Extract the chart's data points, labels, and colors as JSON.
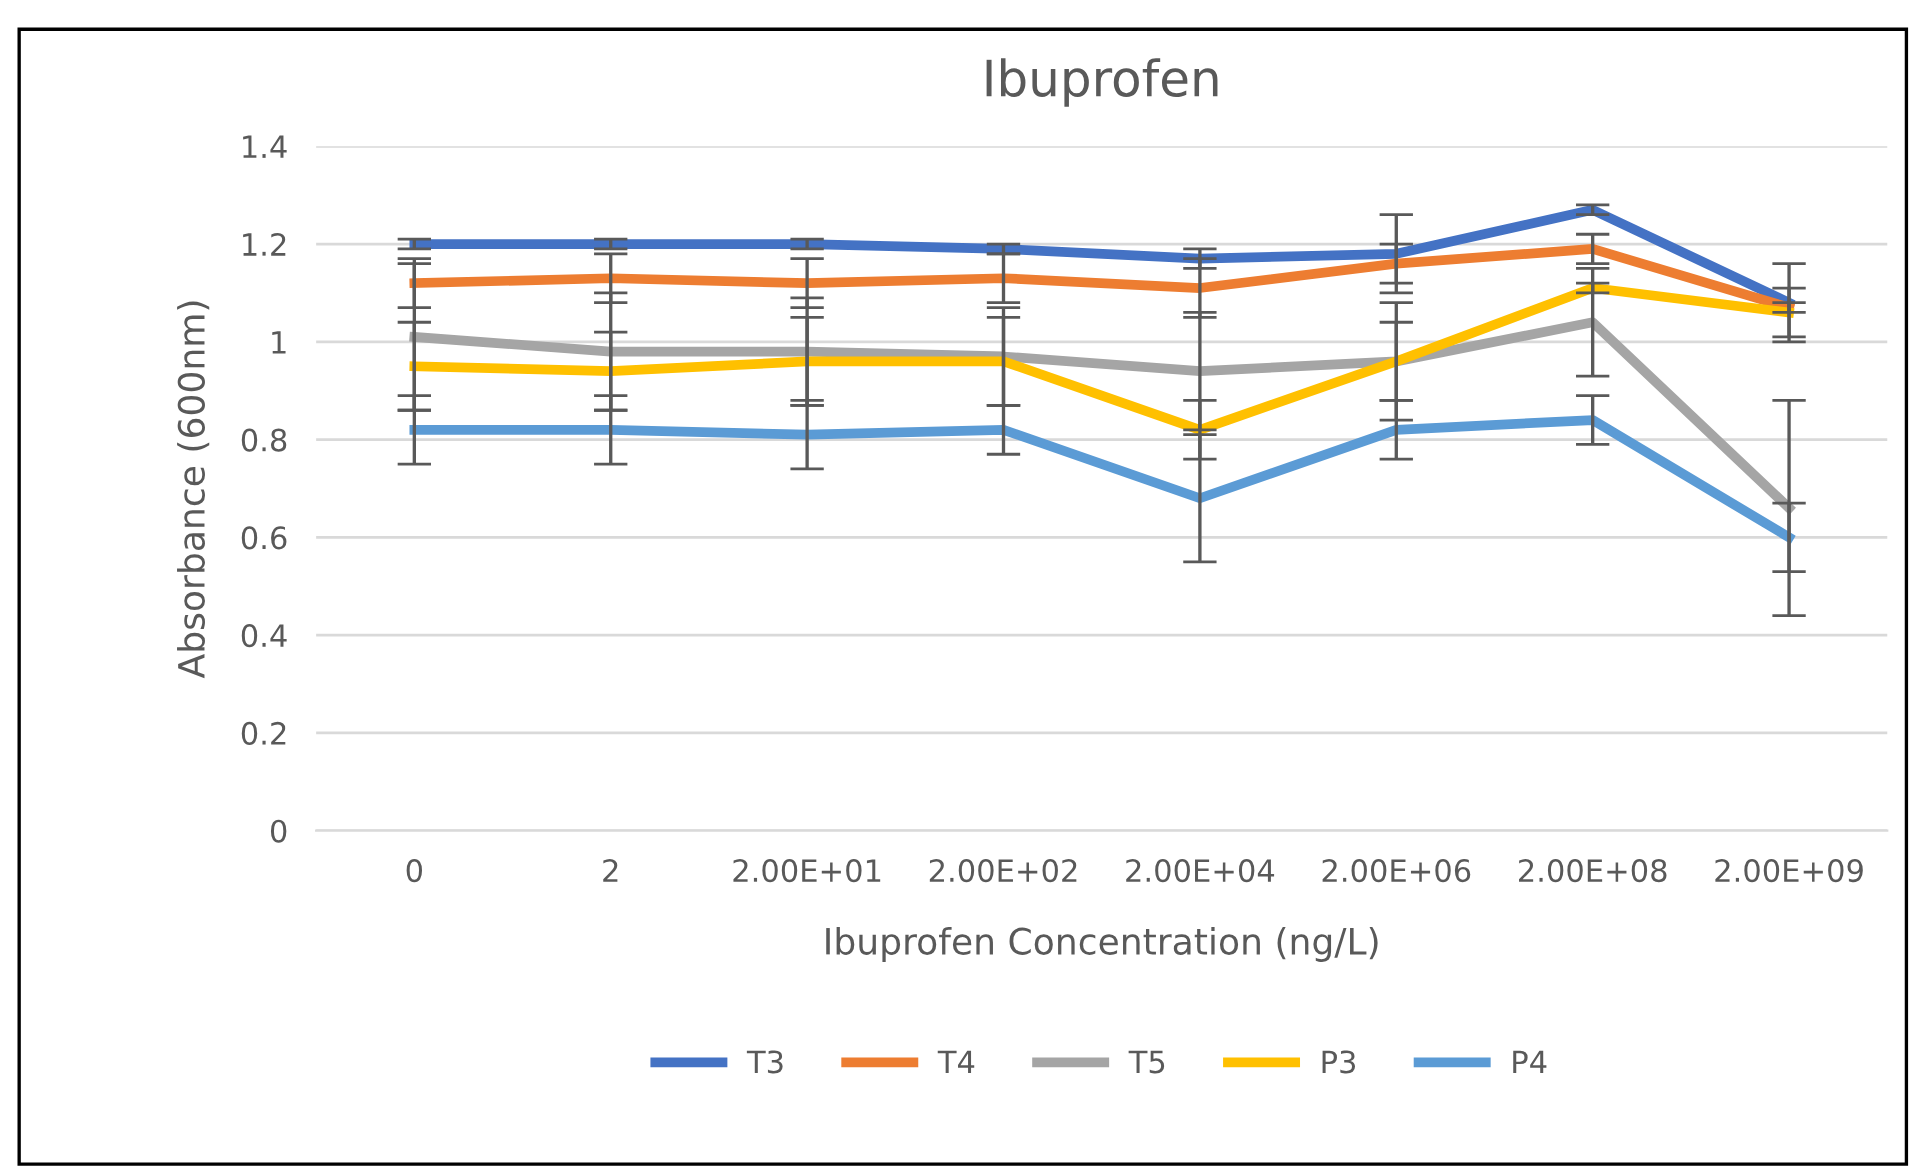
{
  "chart_data": {
    "type": "line",
    "title": "Ibuprofen",
    "xlabel": "Ibuprofen Concentration (ng/L)",
    "ylabel": "Absorbance (600nm)",
    "categories": [
      "0",
      "2",
      "2.00E+01",
      "2.00E+02",
      "2.00E+04",
      "2.00E+06",
      "2.00E+08",
      "2.00E+09"
    ],
    "ylim": [
      0,
      1.4
    ],
    "yticks": [
      0,
      0.2,
      0.4,
      0.6,
      0.8,
      {
        "value": 1,
        "label": "1"
      },
      1.2,
      1.4
    ],
    "grid": "y",
    "legend": "bottom",
    "marker": "none",
    "line_style": "solid",
    "series": [
      {
        "name": "T3",
        "color": "#4472c4",
        "values": [
          1.2,
          1.2,
          1.2,
          1.19,
          1.17,
          1.18,
          1.27,
          1.08
        ],
        "errors": [
          0.01,
          0.01,
          0.01,
          0.01,
          0.02,
          0.08,
          0.01,
          0.08
        ]
      },
      {
        "name": "T4",
        "color": "#ed7d31",
        "values": [
          1.12,
          1.13,
          1.12,
          1.13,
          1.11,
          1.16,
          1.19,
          1.07
        ],
        "errors": [
          0.05,
          0.05,
          0.05,
          0.05,
          0.06,
          0.04,
          0.03,
          0.01
        ]
      },
      {
        "name": "T5",
        "color": "#a5a5a5",
        "values": [
          1.01,
          0.98,
          0.98,
          0.97,
          0.94,
          0.96,
          1.04,
          0.66
        ],
        "errors": [
          0.15,
          0.12,
          0.11,
          0.1,
          0.12,
          0.08,
          0.11,
          0.22
        ]
      },
      {
        "name": "P3",
        "color": "#ffc000",
        "values": [
          0.95,
          0.94,
          0.96,
          0.96,
          0.82,
          0.96,
          1.11,
          1.06
        ],
        "errors": [
          0.09,
          0.08,
          0.09,
          0.09,
          0.06,
          0.12,
          0.01,
          0.05
        ]
      },
      {
        "name": "P4",
        "color": "#5b9bd5",
        "values": [
          0.82,
          0.82,
          0.81,
          0.82,
          0.68,
          0.82,
          0.84,
          0.6
        ],
        "errors": [
          0.07,
          0.07,
          0.07,
          0.05,
          0.13,
          0.06,
          0.05,
          0.07
        ]
      }
    ]
  }
}
